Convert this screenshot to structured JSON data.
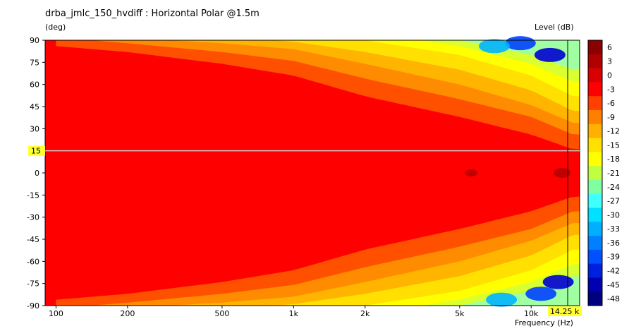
{
  "title": "drba_jmlc_150_hvdiff : Horizontal Polar @1.5m",
  "colors": {
    "bands": [
      "#8b0000",
      "#c00000",
      "#ff0000",
      "#ff5000",
      "#ff8c00",
      "#ffb400",
      "#ffe000",
      "#ffff00",
      "#d8ff30",
      "#a0ffa0",
      "#60ffff",
      "#00e6ff",
      "#00b4ff",
      "#0080ff",
      "#0040ff",
      "#0000d0",
      "#00008b"
    ],
    "cursor_bg": "#ffff33",
    "cursor_line": "#c8c8c8"
  },
  "chart_data": {
    "type": "heatmap",
    "title": "drba_jmlc_150_hvdiff : Horizontal Polar @1.5m",
    "ylabel": "(deg)",
    "xlabel": "Frequency  (Hz)",
    "colorbar_label": "Level  (dB)",
    "x_scale": "log",
    "xlim": [
      90,
      16000
    ],
    "ylim": [
      -90,
      90
    ],
    "x_ticks": [
      {
        "value": 100,
        "label": "100"
      },
      {
        "value": 200,
        "label": "200"
      },
      {
        "value": 500,
        "label": "500"
      },
      {
        "value": 1000,
        "label": "1k"
      },
      {
        "value": 2000,
        "label": "2k"
      },
      {
        "value": 5000,
        "label": "5k"
      },
      {
        "value": 10000,
        "label": "10k"
      }
    ],
    "y_ticks": [
      90,
      75,
      60,
      45,
      30,
      15,
      0,
      -15,
      -30,
      -45,
      -60,
      -75,
      -90
    ],
    "colorbar_levels": [
      6,
      3,
      0,
      -3,
      -6,
      -9,
      -12,
      -15,
      -18,
      -21,
      -24,
      -27,
      -30,
      -33,
      -36,
      -39,
      -42,
      -45,
      -48
    ],
    "cursor": {
      "angle": 15,
      "angle_label": "15",
      "frequency_label": "14.25 k"
    },
    "contours": [
      {
        "level": -3,
        "upper": [
          [
            100,
            86
          ],
          [
            200,
            82
          ],
          [
            500,
            74
          ],
          [
            1000,
            66
          ],
          [
            2000,
            52
          ],
          [
            5000,
            38
          ],
          [
            10000,
            26
          ],
          [
            15000,
            16
          ]
        ]
      },
      {
        "level": -6,
        "upper": [
          [
            140,
            90
          ],
          [
            200,
            88
          ],
          [
            500,
            82
          ],
          [
            1000,
            76
          ],
          [
            2000,
            64
          ],
          [
            5000,
            50
          ],
          [
            10000,
            38
          ],
          [
            15000,
            26
          ]
        ]
      },
      {
        "level": -9,
        "upper": [
          [
            300,
            90
          ],
          [
            500,
            88
          ],
          [
            1000,
            84
          ],
          [
            2000,
            74
          ],
          [
            5000,
            60
          ],
          [
            10000,
            46
          ],
          [
            15000,
            34
          ]
        ]
      },
      {
        "level": -12,
        "upper": [
          [
            800,
            90
          ],
          [
            1000,
            89
          ],
          [
            2000,
            82
          ],
          [
            5000,
            70
          ],
          [
            10000,
            56
          ],
          [
            15000,
            42
          ]
        ]
      },
      {
        "level": -15,
        "upper": [
          [
            2000,
            90
          ],
          [
            5000,
            80
          ],
          [
            10000,
            66
          ],
          [
            15000,
            52
          ]
        ]
      },
      {
        "level": -18,
        "upper": [
          [
            3500,
            90
          ],
          [
            5000,
            86
          ],
          [
            10000,
            74
          ],
          [
            15000,
            62
          ]
        ]
      },
      {
        "level": -21,
        "upper": [
          [
            5000,
            90
          ],
          [
            10000,
            80
          ],
          [
            15000,
            70
          ]
        ]
      }
    ]
  }
}
